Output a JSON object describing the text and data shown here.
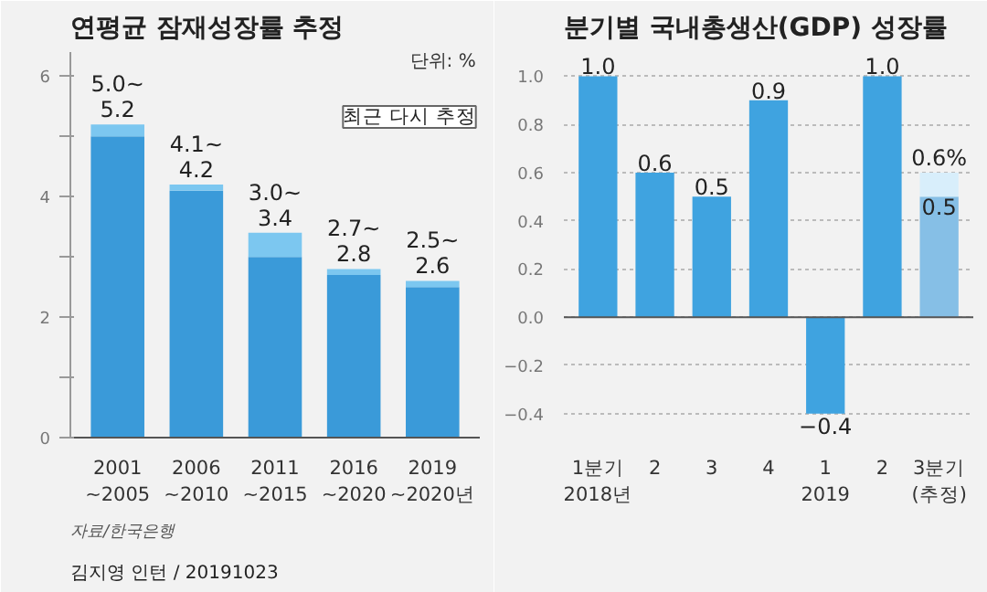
{
  "chart_data": [
    {
      "type": "bar",
      "title": "연평균 잠재성장률 추정",
      "stacked": true,
      "grid": false,
      "categories": [
        "2001\n~2005",
        "2006\n~2010",
        "2011\n~2015",
        "2016\n~2020",
        "2019\n~2020년"
      ],
      "series": [
        {
          "color": "#3a9ad9",
          "values": [
            5.0,
            4.1,
            3.0,
            2.7,
            2.5
          ]
        },
        {
          "color": "#7cc7f0",
          "values": [
            0.2,
            0.1,
            0.4,
            0.1,
            0.1
          ]
        }
      ],
      "ylim": [
        0,
        6.4
      ],
      "yticks": [
        0,
        {
          "value": 1,
          "label": null
        },
        2,
        {
          "value": 3,
          "label": null
        },
        4,
        {
          "value": 5,
          "label": null
        },
        6
      ],
      "annotations": [
        "단위: %",
        "최근 다시 추정",
        "자료/한국은행",
        "김지영 인턴 / 20191023",
        {
          "text": "5.0~\n5.2",
          "x": "2001\n~2005",
          "y": 5.2
        },
        {
          "text": "4.1~\n4.2",
          "x": "2006\n~2010",
          "y": 4.2
        },
        {
          "text": "3.0~\n3.4",
          "x": "2011\n~2015",
          "y": 3.4
        },
        {
          "text": "2.7~\n2.8",
          "x": "2016\n~2020",
          "y": 2.8
        },
        {
          "text": "2.5~\n2.6",
          "x": "2019\n~2020년",
          "y": 2.6
        }
      ]
    },
    {
      "type": "bar",
      "title": "분기별 국내총생산(GDP) 성장률",
      "stacked": true,
      "grid": "y",
      "categories": [
        "1분기\n2018년",
        "2",
        "3",
        "4",
        "1\n2019",
        "2",
        "3분기\n(추정)"
      ],
      "series": [
        {
          "colors": [
            "#3fa3e0",
            "#3fa3e0",
            "#3fa3e0",
            "#3fa3e0",
            "#3fa3e0",
            "#3fa3e0",
            "#86bfe6"
          ],
          "values": [
            1.0,
            0.6,
            0.5,
            0.9,
            -0.4,
            1.0,
            0.5
          ],
          "value_labels": [
            "1.0",
            "0.6",
            "0.5",
            "0.9",
            "−0.4",
            "1.0",
            "0.5"
          ]
        },
        {
          "color": "#d8eefb",
          "values": [
            null,
            null,
            null,
            null,
            null,
            null,
            0.1
          ]
        }
      ],
      "ylim": [
        -0.5,
        1.1
      ],
      "yticks": [
        {
          "value": -0.4,
          "label": "−0.4"
        },
        {
          "value": -0.2,
          "label": "−0.2"
        },
        {
          "value": 0,
          "label": "0.0"
        },
        0.2,
        0.4,
        0.6,
        0.8,
        {
          "value": 1.0,
          "label": "1.0"
        }
      ],
      "annotations": [
        {
          "text": "0.6%",
          "x": "3분기\n(추정)",
          "y": 0.6
        }
      ]
    }
  ]
}
